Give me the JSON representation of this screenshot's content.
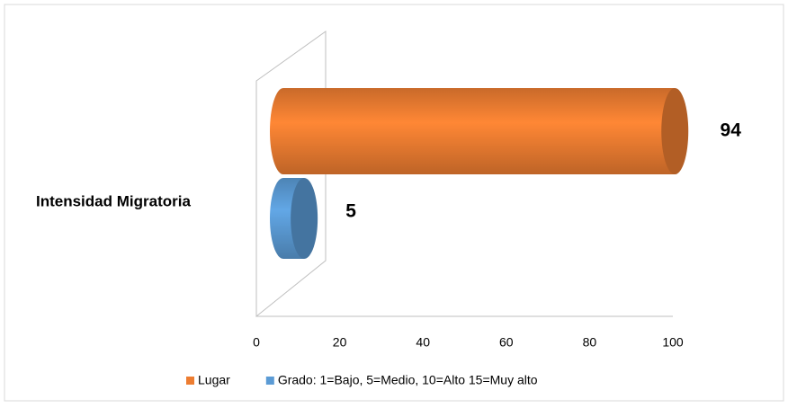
{
  "chart_data": {
    "type": "bar3d_horizontal",
    "categories": [
      "Intensidad Migratoria"
    ],
    "series": [
      {
        "name": "Lugar",
        "color": "#ed7d31",
        "values": [
          94
        ]
      },
      {
        "name": "Grado: 1=Bajo, 5=Medio, 10=Alto 15=Muy alto",
        "color": "#5b9bd5",
        "values": [
          5
        ]
      }
    ],
    "xlim": [
      0,
      100
    ],
    "xticks": [
      0,
      20,
      40,
      60,
      80,
      100
    ],
    "legend": "bottom"
  }
}
